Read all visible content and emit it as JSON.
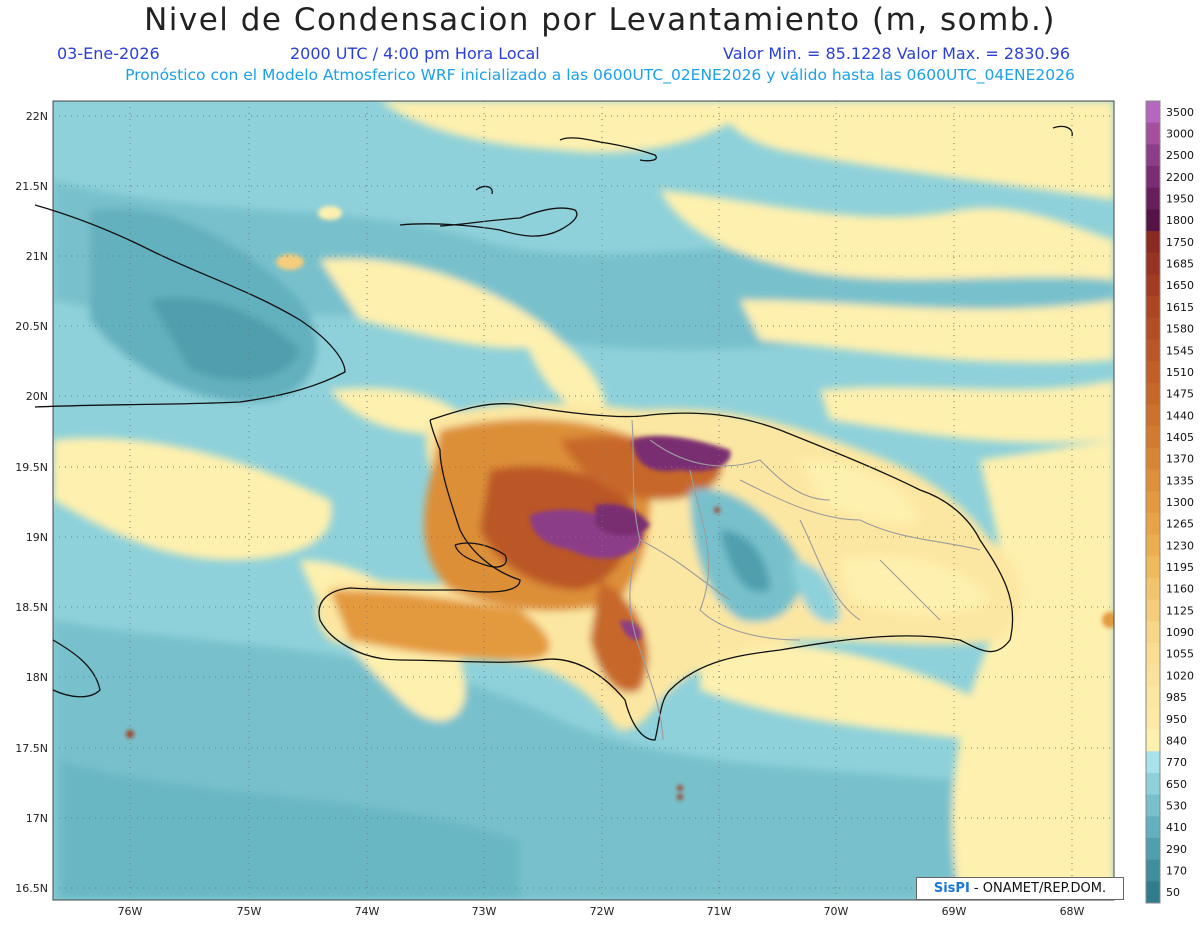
{
  "title": "Nivel de Condensacion por Levantamiento (m, somb.)",
  "date": "03-Ene-2026",
  "time": "2000 UTC / 4:00 pm Hora Local",
  "minmax": "Valor Min. = 85.1228   Valor Max. = 2830.96",
  "model_line": "Pronóstico con el Modelo Atmosferico WRF inicializado a las 0600UTC_02ENE2026 y válido hasta las  0600UTC_04ENE2026",
  "credit_sis": "SisPI",
  "credit_rest": " - ONAMET/REP.DOM.",
  "lat_labels": [
    "22N",
    "21.5N",
    "21N",
    "20.5N",
    "20N",
    "19.5N",
    "19N",
    "18.5N",
    "18N",
    "17.5N",
    "17N",
    "16.5N"
  ],
  "lon_labels": [
    "76W",
    "75W",
    "74W",
    "73W",
    "72W",
    "71W",
    "70W",
    "69W",
    "68W"
  ],
  "legend": [
    {
      "label": "3500",
      "color": "#b566be"
    },
    {
      "label": "3000",
      "color": "#a4509f"
    },
    {
      "label": "2500",
      "color": "#8c3d88"
    },
    {
      "label": "2200",
      "color": "#7a2d72"
    },
    {
      "label": "1950",
      "color": "#671f5c"
    },
    {
      "label": "1800",
      "color": "#561446"
    },
    {
      "label": "1750",
      "color": "#8b2a22"
    },
    {
      "label": "1685",
      "color": "#973322"
    },
    {
      "label": "1650",
      "color": "#a33b22"
    },
    {
      "label": "1615",
      "color": "#ad4422"
    },
    {
      "label": "1580",
      "color": "#b54d24"
    },
    {
      "label": "1545",
      "color": "#bb5626"
    },
    {
      "label": "1510",
      "color": "#c15f27"
    },
    {
      "label": "1475",
      "color": "#c76829"
    },
    {
      "label": "1440",
      "color": "#cd712c"
    },
    {
      "label": "1405",
      "color": "#d27b30"
    },
    {
      "label": "1370",
      "color": "#d78535"
    },
    {
      "label": "1335",
      "color": "#dd8f39"
    },
    {
      "label": "1300",
      "color": "#e3993e"
    },
    {
      "label": "1265",
      "color": "#e8a444"
    },
    {
      "label": "1230",
      "color": "#ecaf4e"
    },
    {
      "label": "1195",
      "color": "#efba5c"
    },
    {
      "label": "1160",
      "color": "#f2c46b"
    },
    {
      "label": "1125",
      "color": "#f5cd7a"
    },
    {
      "label": "1090",
      "color": "#f7d688"
    },
    {
      "label": "1055",
      "color": "#f9dd93"
    },
    {
      "label": "1020",
      "color": "#fbe29c"
    },
    {
      "label": "985",
      "color": "#fce7a2"
    },
    {
      "label": "950",
      "color": "#fdeaa7"
    },
    {
      "label": "840",
      "color": "#fef0ae"
    },
    {
      "label": "770",
      "color": "#a9e3ea"
    },
    {
      "label": "650",
      "color": "#8fd1da"
    },
    {
      "label": "530",
      "color": "#78c1cc"
    },
    {
      "label": "410",
      "color": "#63b0be"
    },
    {
      "label": "290",
      "color": "#4f9fae"
    },
    {
      "label": "170",
      "color": "#3f8e9e"
    },
    {
      "label": "50",
      "color": "#2f7c8c"
    }
  ]
}
